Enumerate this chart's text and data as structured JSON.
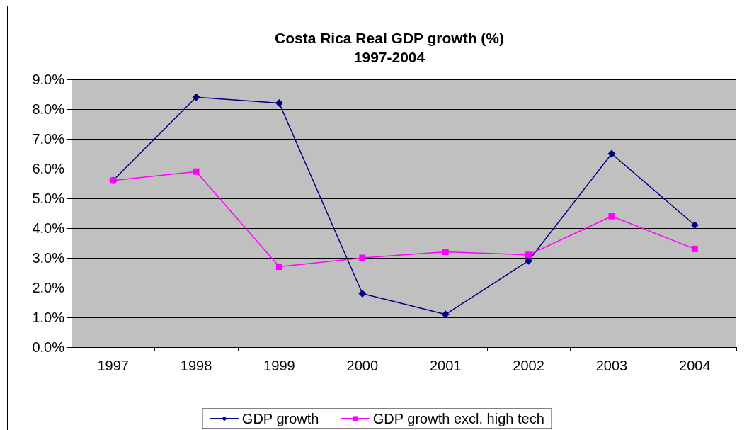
{
  "chart_data": {
    "type": "line",
    "title": "Costa Rica Real GDP growth (%)",
    "subtitle": "1997-2004",
    "categories": [
      "1997",
      "1998",
      "1999",
      "2000",
      "2001",
      "2002",
      "2003",
      "2004"
    ],
    "series": [
      {
        "name": "GDP growth",
        "color": "#000080",
        "marker": "diamond",
        "values": [
          5.6,
          8.4,
          8.2,
          1.8,
          1.1,
          2.9,
          6.5,
          4.1
        ]
      },
      {
        "name": "GDP growth excl. high tech",
        "color": "#ff00ff",
        "marker": "square",
        "values": [
          5.6,
          5.9,
          2.7,
          3.0,
          3.2,
          3.1,
          4.4,
          3.3
        ]
      }
    ],
    "ylim": [
      0,
      9
    ],
    "yticks": [
      {
        "value": 0,
        "label": "0.0%"
      },
      {
        "value": 1,
        "label": "1.0%"
      },
      {
        "value": 2,
        "label": "2.0%"
      },
      {
        "value": 3,
        "label": "3.0%"
      },
      {
        "value": 4,
        "label": "4.0%"
      },
      {
        "value": 5,
        "label": "5.0%"
      },
      {
        "value": 6,
        "label": "6.0%"
      },
      {
        "value": 7,
        "label": "7.0%"
      },
      {
        "value": 8,
        "label": "8.0%"
      },
      {
        "value": 9,
        "label": "9.0%"
      }
    ],
    "grid": "y",
    "legend": "bottom",
    "line_style": "solid"
  }
}
